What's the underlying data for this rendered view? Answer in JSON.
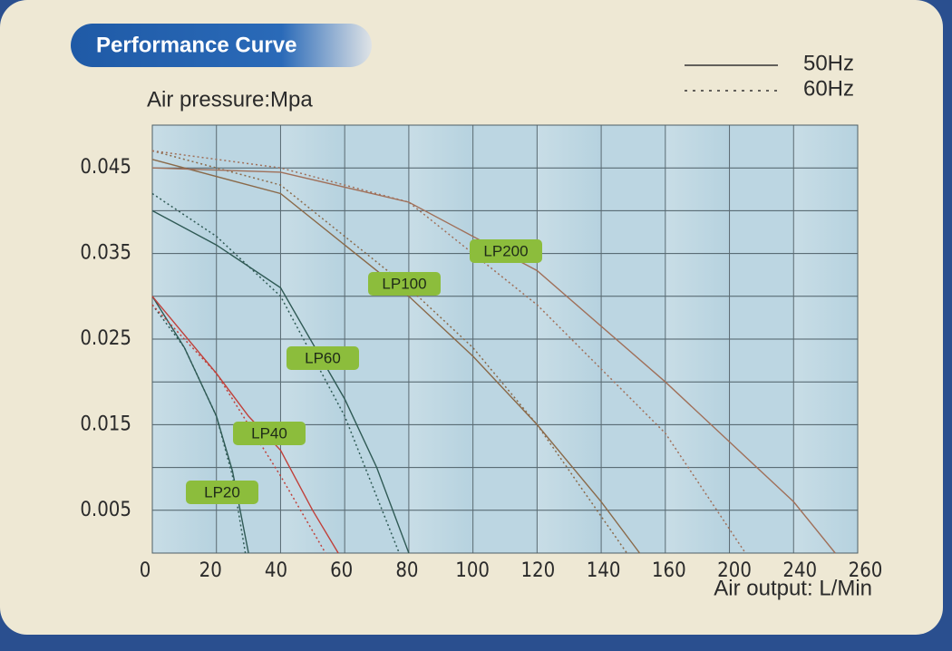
{
  "chart_data": {
    "type": "line",
    "title": "Performance Curve",
    "y_label": "Air pressure:Mpa",
    "x_label": "Air output: L/Min",
    "legend": [
      {
        "label": "50Hz",
        "dash": "solid"
      },
      {
        "label": "60Hz",
        "dash": "dotted"
      }
    ],
    "xlim": [
      0,
      260
    ],
    "xticks": [
      0,
      20,
      40,
      60,
      80,
      100,
      120,
      140,
      160,
      200,
      240,
      260
    ],
    "ylim": [
      0,
      0.05
    ],
    "yticks": [
      0.005,
      0.015,
      0.025,
      0.035,
      0.045
    ],
    "grid": true,
    "series": [
      {
        "name": "LP20",
        "color": "#2f5a55",
        "hz50": {
          "x": [
            0,
            10,
            20,
            25,
            30
          ],
          "y": [
            0.03,
            0.024,
            0.016,
            0.0096,
            0
          ]
        },
        "hz60": {
          "x": [
            0,
            10,
            20,
            25,
            29
          ],
          "y": [
            0.029,
            0.024,
            0.016,
            0.009,
            0
          ]
        }
      },
      {
        "name": "LP40",
        "color": "#c0403a",
        "hz50": {
          "x": [
            0,
            20,
            30,
            40,
            50,
            58
          ],
          "y": [
            0.03,
            0.021,
            0.016,
            0.012,
            0.005,
            0
          ]
        },
        "hz60": {
          "x": [
            0,
            20,
            30,
            40,
            54
          ],
          "y": [
            0.029,
            0.021,
            0.015,
            0.009,
            0
          ]
        }
      },
      {
        "name": "LP60",
        "color": "#2f5a55",
        "hz50": {
          "x": [
            0,
            20,
            40,
            60,
            70,
            80
          ],
          "y": [
            0.04,
            0.036,
            0.031,
            0.018,
            0.01,
            0
          ]
        },
        "hz60": {
          "x": [
            0,
            20,
            40,
            60,
            77
          ],
          "y": [
            0.042,
            0.037,
            0.03,
            0.016,
            0
          ]
        }
      },
      {
        "name": "LP100",
        "color": "#8a6a4a",
        "hz50": {
          "x": [
            0,
            40,
            80,
            100,
            120,
            140,
            152
          ],
          "y": [
            0.046,
            0.042,
            0.03,
            0.023,
            0.015,
            0.006,
            0
          ]
        },
        "hz60": {
          "x": [
            0,
            40,
            80,
            100,
            120,
            148
          ],
          "y": [
            0.047,
            0.043,
            0.031,
            0.024,
            0.015,
            0
          ]
        }
      },
      {
        "name": "LP200",
        "color": "#a0705a",
        "hz50": {
          "x": [
            0,
            40,
            80,
            120,
            160,
            200,
            240,
            253
          ],
          "y": [
            0.045,
            0.0445,
            0.041,
            0.033,
            0.02,
            0.013,
            0.006,
            0
          ]
        },
        "hz60": {
          "x": [
            0,
            40,
            80,
            120,
            160,
            210
          ],
          "y": [
            0.047,
            0.045,
            0.041,
            0.029,
            0.014,
            0
          ]
        }
      }
    ]
  }
}
